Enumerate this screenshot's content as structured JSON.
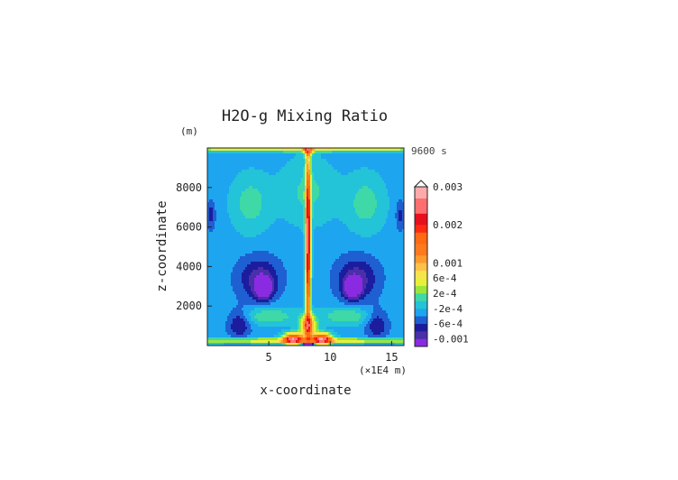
{
  "chart_data": {
    "type": "heatmap",
    "title": "H2O-g Mixing Ratio",
    "time_label": "9600 s",
    "xlabel": "x-coordinate",
    "x_unit": "(×1E4 m)",
    "ylabel": "z-coordinate",
    "y_unit": "(m)",
    "xlim": [
      0,
      16
    ],
    "ylim": [
      0,
      10000
    ],
    "x_ticks": [
      "5",
      "10",
      "15"
    ],
    "y_ticks": [
      "2000",
      "4000",
      "6000",
      "8000"
    ],
    "x_tick_values": [
      5,
      10,
      15
    ],
    "y_tick_values": [
      2000,
      4000,
      6000,
      8000
    ],
    "colorbar": {
      "labels": [
        "0.003",
        "0.002",
        "0.001",
        "6e-4",
        "2e-4",
        "-2e-4",
        "-6e-4",
        "-0.001"
      ],
      "label_values": [
        0.003,
        0.002,
        0.001,
        0.0006,
        0.0002,
        -0.0002,
        -0.0006,
        -0.001
      ],
      "min": -0.0012,
      "max": 0.003,
      "levels": [
        {
          "from": -0.0012,
          "to": -0.001,
          "color": "#8a2be2"
        },
        {
          "from": -0.001,
          "to": -0.0008,
          "color": "#4a2fa8"
        },
        {
          "from": -0.0008,
          "to": -0.0006,
          "color": "#1c1c9e"
        },
        {
          "from": -0.0006,
          "to": -0.0004,
          "color": "#1e5fd2"
        },
        {
          "from": -0.0004,
          "to": -0.0002,
          "color": "#1ea5f0"
        },
        {
          "from": -0.0002,
          "to": 0.0,
          "color": "#23c3d8"
        },
        {
          "from": 0.0,
          "to": 0.0002,
          "color": "#3ed9a6"
        },
        {
          "from": 0.0002,
          "to": 0.0004,
          "color": "#9be63c"
        },
        {
          "from": 0.0004,
          "to": 0.0006,
          "color": "#e8f03a"
        },
        {
          "from": 0.0006,
          "to": 0.0008,
          "color": "#f7e44a"
        },
        {
          "from": 0.0008,
          "to": 0.001,
          "color": "#ffc04a"
        },
        {
          "from": 0.001,
          "to": 0.0012,
          "color": "#ff9a2e"
        },
        {
          "from": 0.0012,
          "to": 0.0015,
          "color": "#ff7a1f"
        },
        {
          "from": 0.0015,
          "to": 0.0018,
          "color": "#ff6a12"
        },
        {
          "from": 0.0018,
          "to": 0.002,
          "color": "#ff2a12"
        },
        {
          "from": 0.002,
          "to": 0.0023,
          "color": "#e8101c"
        },
        {
          "from": 0.0023,
          "to": 0.0027,
          "color": "#ff6f6f"
        },
        {
          "from": 0.0027,
          "to": 0.003,
          "color": "#ffaaaa"
        }
      ]
    },
    "field": {
      "background_value": -0.0003,
      "features": [
        {
          "x": 8.2,
          "z": 5200,
          "sx": 0.22,
          "sz": 4200,
          "a": 0.0028
        },
        {
          "x": 8.2,
          "z": 9900,
          "sx": 0.4,
          "sz": 300,
          "a": 0.0012
        },
        {
          "x": 8.2,
          "z": 1000,
          "sx": 0.6,
          "sz": 500,
          "a": 0.0018
        },
        {
          "x": 7.0,
          "z": 350,
          "sx": 0.8,
          "sz": 280,
          "a": 0.0025
        },
        {
          "x": 9.3,
          "z": 350,
          "sx": 0.8,
          "sz": 280,
          "a": 0.0025
        },
        {
          "x": 8.2,
          "z": 80,
          "sx": 0.5,
          "sz": 80,
          "a": -0.0018
        },
        {
          "x": 8.0,
          "z": 250,
          "sx": 16.0,
          "sz": 130,
          "a": 0.0009
        },
        {
          "x": 8.0,
          "z": 9950,
          "sx": 16.0,
          "sz": 140,
          "a": 0.0009
        },
        {
          "x": 4.2,
          "z": 3400,
          "sx": 1.7,
          "sz": 1100,
          "a": -0.0006
        },
        {
          "x": 12.2,
          "z": 3400,
          "sx": 1.7,
          "sz": 1100,
          "a": -0.0006
        },
        {
          "x": 4.6,
          "z": 2900,
          "sx": 0.7,
          "sz": 550,
          "a": -0.0009
        },
        {
          "x": 11.8,
          "z": 2900,
          "sx": 0.7,
          "sz": 550,
          "a": -0.0009
        },
        {
          "x": 3.5,
          "z": 7200,
          "sx": 1.6,
          "sz": 1500,
          "a": 0.0004
        },
        {
          "x": 12.9,
          "z": 7200,
          "sx": 1.6,
          "sz": 1500,
          "a": 0.0004
        },
        {
          "x": 8.2,
          "z": 7800,
          "sx": 2.3,
          "sz": 1700,
          "a": 0.00035
        },
        {
          "x": 5.0,
          "z": 1500,
          "sx": 2.2,
          "sz": 450,
          "a": 0.0005
        },
        {
          "x": 11.4,
          "z": 1500,
          "sx": 2.2,
          "sz": 450,
          "a": 0.0005
        },
        {
          "x": 2.6,
          "z": 1100,
          "sx": 0.9,
          "sz": 700,
          "a": -0.00055
        },
        {
          "x": 13.8,
          "z": 1100,
          "sx": 0.9,
          "sz": 700,
          "a": -0.00055
        },
        {
          "x": 0.3,
          "z": 6600,
          "sx": 0.35,
          "sz": 700,
          "a": -0.0004
        },
        {
          "x": 15.7,
          "z": 6600,
          "sx": 0.35,
          "sz": 700,
          "a": -0.0004
        }
      ]
    }
  }
}
